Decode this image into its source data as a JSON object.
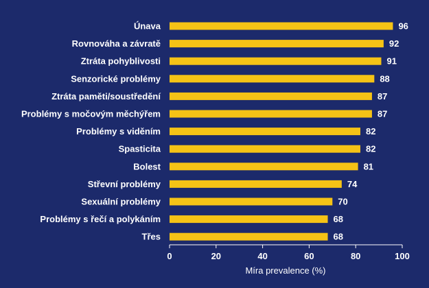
{
  "chart_data": {
    "type": "bar",
    "orientation": "horizontal",
    "categories": [
      "Únava",
      "Rovnováha a závratě",
      "Ztráta pohyblivosti",
      "Senzorické problémy",
      "Ztráta paměti/soustředění",
      "Problémy s močovým měchýřem",
      "Problémy s viděním",
      "Spasticita",
      "Bolest",
      "Střevní problémy",
      "Sexuální problémy",
      "Problémy s řečí a polykáním",
      "Třes"
    ],
    "values": [
      96,
      92,
      91,
      88,
      87,
      87,
      82,
      82,
      81,
      74,
      70,
      68,
      68
    ],
    "xlabel": "Míra prevalence (%)",
    "xlim": [
      0,
      100
    ],
    "xticks": [
      0,
      20,
      40,
      60,
      80,
      100
    ],
    "grid": false,
    "legend": "none",
    "colors": {
      "background": "#1c2a6b",
      "bar": "#f5c316",
      "axis": "#ffffff",
      "text": "#ffffff"
    }
  }
}
